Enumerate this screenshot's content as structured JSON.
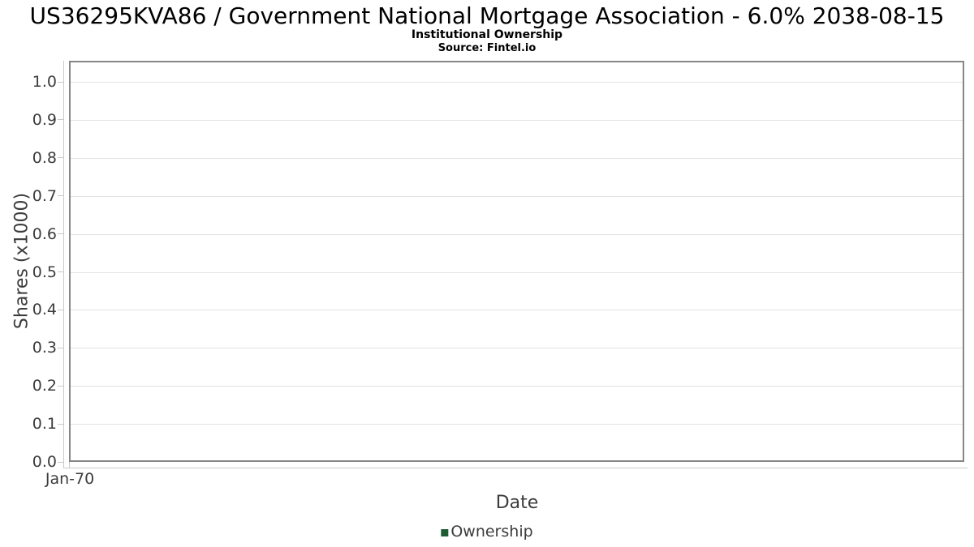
{
  "title": "US36295KVA86 / Government National Mortgage Association - 6.0% 2038-08-15",
  "subtitle": "Institutional Ownership",
  "source": "Source: Fintel.io",
  "chart_data": {
    "type": "line",
    "title": "US36295KVA86 / Government National Mortgage Association - 6.0% 2038-08-15",
    "subtitle": "Institutional Ownership",
    "source": "Source: Fintel.io",
    "xlabel": "Date",
    "ylabel": "Shares (x1000)",
    "x_ticks": [
      "Jan-70"
    ],
    "y_ticks": {
      "values": [
        0,
        0.1,
        0.2,
        0.3,
        0.4,
        0.5,
        0.6,
        0.7,
        0.8,
        0.9,
        1.0
      ],
      "labels": [
        "0.0",
        "0.1",
        "0.2",
        "0.3",
        "0.4",
        "0.5",
        "0.6",
        "0.7",
        "0.8",
        "0.9",
        "1.0"
      ]
    },
    "ylim": [
      0,
      1.055
    ],
    "grid": "horizontal",
    "legend_position": "bottom-center",
    "series": [
      {
        "name": "Ownership",
        "color": "#1e5a32",
        "values": []
      }
    ]
  },
  "colors": {
    "background": "#ffffff",
    "plot_border": "#868686",
    "gridline": "#e3e3e3",
    "axis_line": "#c9c9c9",
    "tick_text": "#3c3c3c",
    "title_text": "#000000",
    "legend_swatch": "#1e5a32"
  }
}
